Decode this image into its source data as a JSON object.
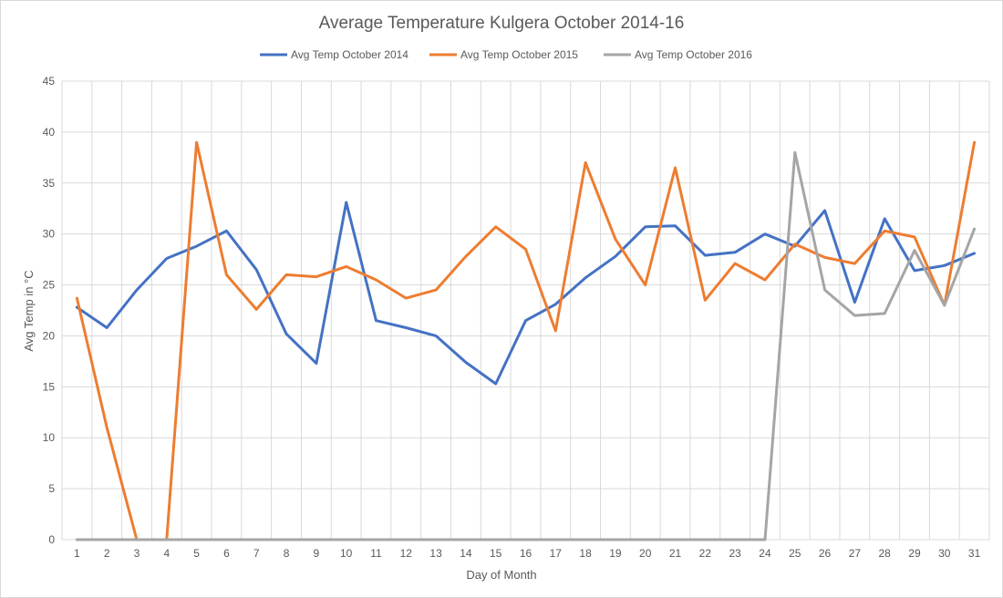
{
  "chart_data": {
    "type": "line",
    "title": "Average Temperature Kulgera October 2014-16",
    "xlabel": "Day of Month",
    "ylabel": "Avg Temp in °C",
    "ylim": [
      0,
      45
    ],
    "yticks": [
      0,
      5,
      10,
      15,
      20,
      25,
      30,
      35,
      40,
      45
    ],
    "grid": true,
    "legend_position": "top",
    "categories": [
      "1",
      "2",
      "3",
      "4",
      "5",
      "6",
      "7",
      "8",
      "9",
      "10",
      "11",
      "12",
      "13",
      "14",
      "15",
      "16",
      "17",
      "18",
      "19",
      "20",
      "21",
      "22",
      "23",
      "24",
      "25",
      "26",
      "27",
      "28",
      "29",
      "30",
      "31"
    ],
    "series": [
      {
        "name": "Avg Temp October 2014",
        "color": "#4472c4",
        "values": [
          22.8,
          20.8,
          24.5,
          27.6,
          28.8,
          30.3,
          26.5,
          20.2,
          17.3,
          33.1,
          21.5,
          20.8,
          20.0,
          17.4,
          15.3,
          21.5,
          23.1,
          25.7,
          27.8,
          30.7,
          30.8,
          27.9,
          28.2,
          30.0,
          28.8,
          32.3,
          23.3,
          31.5,
          26.4,
          26.9,
          28.1
        ]
      },
      {
        "name": "Avg Temp October 2015",
        "color": "#ed7d31",
        "values": [
          23.7,
          11.0,
          0,
          0,
          39.0,
          26.0,
          22.6,
          26.0,
          25.8,
          26.8,
          25.5,
          23.7,
          24.5,
          27.8,
          30.7,
          28.5,
          20.5,
          37.0,
          29.5,
          25.0,
          36.5,
          23.5,
          27.1,
          25.5,
          29.0,
          27.7,
          27.1,
          30.3,
          29.7,
          23.0,
          39.0
        ]
      },
      {
        "name": "Avg Temp October 2016",
        "color": "#a5a5a5",
        "values": [
          0,
          0,
          0,
          0,
          0,
          0,
          0,
          0,
          0,
          0,
          0,
          0,
          0,
          0,
          0,
          0,
          0,
          0,
          0,
          0,
          0,
          0,
          0,
          0,
          38.0,
          24.5,
          22.0,
          22.2,
          28.4,
          23.0,
          30.5
        ]
      }
    ]
  }
}
